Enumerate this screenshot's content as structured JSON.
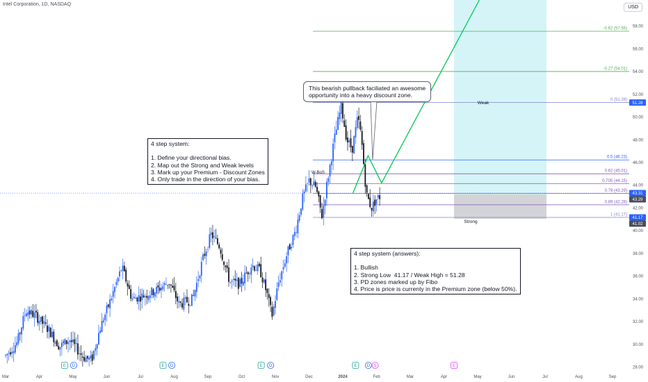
{
  "header": {
    "symbol_text": "Intel Corporation, 1D, NASDAQ",
    "currency": "USD"
  },
  "chart_data": {
    "type": "candlestick",
    "x_tick_labels": [
      "Mar",
      "Apr",
      "May",
      "Jun",
      "Jul",
      "Aug",
      "Sep",
      "Oct",
      "Nov",
      "Dec",
      "2024",
      "Feb",
      "Mar",
      "Apr",
      "May",
      "Jun",
      "Jul",
      "Aug",
      "Sep"
    ],
    "y_ticks": [
      28.0,
      30.0,
      32.0,
      34.0,
      36.0,
      38.0,
      40.0,
      42.0,
      44.0,
      46.0,
      48.0,
      50.0,
      52.0,
      54.0,
      56.0,
      58.0
    ],
    "ylim": [
      27.3,
      60.3
    ],
    "fib_levels": [
      {
        "label": "-0.62 (57.55)",
        "value": 57.55,
        "color": "#4caf50"
      },
      {
        "label": "-0.27 (54.01)",
        "value": 54.01,
        "color": "#4caf50"
      },
      {
        "label": "0 (51.28)",
        "value": 51.28,
        "color": "#7e84c8"
      },
      {
        "label": "0.5 (46.23)",
        "value": 46.23,
        "color": "#2962ff"
      },
      {
        "label": "0.62 (45.01)",
        "value": 45.01,
        "color": "#7e57c2"
      },
      {
        "label": "0.705 (44.15)",
        "value": 44.15,
        "color": "#7e57c2"
      },
      {
        "label": "0.79 (43.29)",
        "value": 43.29,
        "color": "#7e57c2"
      },
      {
        "label": "0.89 (42.28)",
        "value": 42.28,
        "color": "#7e57c2"
      },
      {
        "label": "1 (41.17)",
        "value": 41.17,
        "color": "#7e84c8"
      }
    ],
    "price_badges": [
      {
        "label": "51.28",
        "value": 51.28,
        "color": "#2962ff"
      },
      {
        "label": "43.31",
        "value": 43.31,
        "color": "#2962ff"
      },
      {
        "label": "43.29",
        "value": 43.29,
        "color": "#4a4e5a"
      },
      {
        "label": "41.17",
        "value": 41.17,
        "color": "#2962ff"
      },
      {
        "label": "41.02",
        "value": 41.02,
        "color": "#4a4e5a"
      }
    ],
    "zone_labels": {
      "weak": "Weak",
      "strong": "Strong",
      "wbos": "W-BoS"
    },
    "event_markers": [
      {
        "type": "E",
        "month_index": 1.75,
        "color": "#26a69a"
      },
      {
        "type": "D",
        "month_index": 2.02,
        "color": "#2962ff"
      },
      {
        "type": "E",
        "month_index": 4.67,
        "color": "#26a69a"
      },
      {
        "type": "D",
        "month_index": 4.93,
        "color": "#2962ff"
      },
      {
        "type": "E",
        "month_index": 7.58,
        "color": "#26a69a"
      },
      {
        "type": "D",
        "month_index": 7.86,
        "color": "#2962ff"
      },
      {
        "type": "E",
        "month_index": 10.38,
        "color": "#26a69a"
      },
      {
        "type": "D",
        "month_index": 10.76,
        "color": "#2962ff"
      },
      {
        "type": "S",
        "month_index": 10.96,
        "color": "#e040fb"
      },
      {
        "type": "E",
        "month_index": 13.3,
        "color": "#e040fb"
      }
    ],
    "projection_path": [
      [
        10.3,
        43.3
      ],
      [
        10.75,
        46.6
      ],
      [
        11.15,
        44.2
      ],
      [
        14.05,
        60.3
      ]
    ],
    "candle_anchors": [
      [
        0,
        29.0
      ],
      [
        0.35,
        30.2
      ],
      [
        0.6,
        33.0
      ],
      [
        0.9,
        32.5
      ],
      [
        1.3,
        31.2
      ],
      [
        1.6,
        29.8
      ],
      [
        1.9,
        30.4
      ],
      [
        2.3,
        28.9
      ],
      [
        2.55,
        28.6
      ],
      [
        2.8,
        31.4
      ],
      [
        3.1,
        33.8
      ],
      [
        3.45,
        36.8
      ],
      [
        3.75,
        34.0
      ],
      [
        4.1,
        34.3
      ],
      [
        4.5,
        34.8
      ],
      [
        4.85,
        35.5
      ],
      [
        5.15,
        33.5
      ],
      [
        5.55,
        34.0
      ],
      [
        5.85,
        37.5
      ],
      [
        6.1,
        39.7
      ],
      [
        6.35,
        38.6
      ],
      [
        6.65,
        35.5
      ],
      [
        6.95,
        35.3
      ],
      [
        7.3,
        37.0
      ],
      [
        7.55,
        36.5
      ],
      [
        7.75,
        34.5
      ],
      [
        7.9,
        32.5
      ],
      [
        8.1,
        35.5
      ],
      [
        8.35,
        38.0
      ],
      [
        8.6,
        40.0
      ],
      [
        8.8,
        42.8
      ],
      [
        9.0,
        44.4
      ],
      [
        9.2,
        43.8
      ],
      [
        9.38,
        41.3
      ],
      [
        9.55,
        44.5
      ],
      [
        9.75,
        48.0
      ],
      [
        9.95,
        51.0
      ],
      [
        10.12,
        48.0
      ],
      [
        10.28,
        47.2
      ],
      [
        10.45,
        50.0
      ],
      [
        10.55,
        48.2
      ],
      [
        10.7,
        43.2
      ],
      [
        10.85,
        42.0
      ],
      [
        11.0,
        42.8
      ],
      [
        11.1,
        43.0
      ]
    ]
  },
  "notes": {
    "system": "4 step system:\n\n1. Define your directional bias.\n2. Map out the Strong and Weak levels\n3. Mark up your Premium - Discount Zones\n4. Only trade in the direction of your bias.",
    "answers": "4 step system (answers):\n\n1. Bullish\n2. Strong Low  41.17 / Weak High = 51.28\n3. PD zones marked up by Fibo\n4. Price is price is currenty in the Premium zone (below 50%).",
    "callout": "This bearish pullback faciliated an awesome\nopportunity into a heavy discount zone."
  }
}
